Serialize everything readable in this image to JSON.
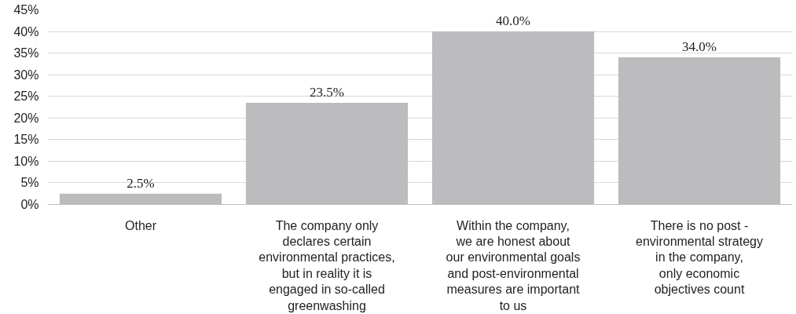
{
  "chart_data": {
    "type": "bar",
    "categories": [
      "Other",
      "The company only\ndeclares certain\nenvironmental practices,\nbut in reality it is\nengaged in so-called\ngreenwashing",
      "Within the company,\nwe are honest about\nour environmental goals\nand post-environmental\nmeasures are important\nto us",
      "There is no post -\nenvironmental strategy\nin the company,\nonly economic\nobjectives count"
    ],
    "values": [
      2.5,
      23.5,
      40.0,
      34.0
    ],
    "value_labels": [
      "2.5%",
      "23.5%",
      "40.0%",
      "34.0%"
    ],
    "color": "#bcbcbe",
    "ylim": [
      0,
      45
    ],
    "yticks": [
      {
        "value": 0,
        "label": "0%"
      },
      {
        "value": 5,
        "label": "5%"
      },
      {
        "value": 10,
        "label": "10%"
      },
      {
        "value": 15,
        "label": "15%"
      },
      {
        "value": 20,
        "label": "20%"
      },
      {
        "value": 25,
        "label": "25%"
      },
      {
        "value": 30,
        "label": "30%"
      },
      {
        "value": 35,
        "label": "35%"
      },
      {
        "value": 40,
        "label": "40%"
      },
      {
        "value": 45,
        "label": "45%"
      }
    ],
    "grid": "y"
  }
}
